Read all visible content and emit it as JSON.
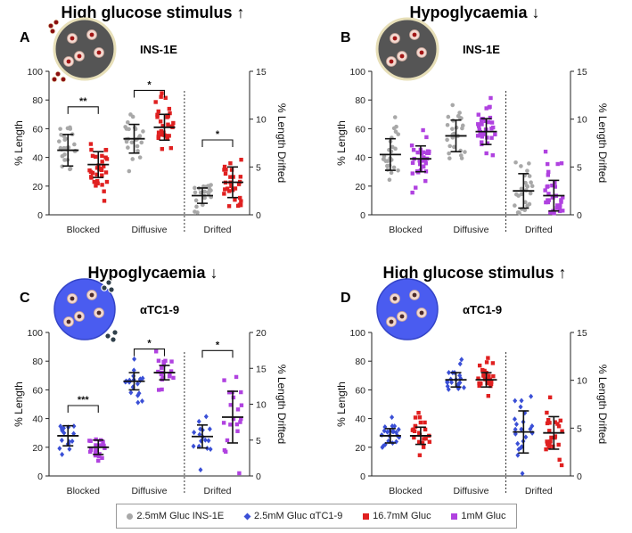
{
  "legend": [
    {
      "key": "ins",
      "label": "2.5mM Gluc INS-1E",
      "color": "#a8a8a8",
      "shape": "circle"
    },
    {
      "key": "atc",
      "label": "2.5mM Gluc αTC1-9",
      "color": "#3a4fd6",
      "shape": "diamond"
    },
    {
      "key": "high",
      "label": "16.7mM Gluc",
      "color": "#e02020",
      "shape": "square"
    },
    {
      "key": "low",
      "label": "1mM Gluc",
      "color": "#b042e0",
      "shape": "square"
    }
  ],
  "chart_data": [
    {
      "panel": "A",
      "type": "scatter",
      "title": "High glucose stimulus ↑",
      "cell_line": "INS-1E",
      "cell_style": "insulin",
      "stimulus_granules": true,
      "ylabel": "% Length",
      "ylabel_right": "% Length Drifted",
      "ylim": [
        0,
        100
      ],
      "y2lim": [
        0,
        15
      ],
      "yticks": [
        0,
        20,
        40,
        60,
        80,
        100
      ],
      "y2ticks": [
        0,
        5,
        10,
        15
      ],
      "categories": [
        "Blocked",
        "Diffusive",
        "Drifted"
      ],
      "series": [
        {
          "name": "2.5mM Gluc INS-1E",
          "color": "#a8a8a8",
          "shape": "circle",
          "mean": [
            45,
            53,
            2.0
          ],
          "sd": [
            11,
            10,
            0.8
          ],
          "n": [
            26,
            24,
            22
          ]
        },
        {
          "name": "16.7mM Gluc",
          "color": "#e02020",
          "shape": "square",
          "mean": [
            35,
            61,
            3.4
          ],
          "sd": [
            9,
            9,
            1.6
          ],
          "n": [
            32,
            30,
            28
          ]
        }
      ],
      "significance": [
        {
          "category": "Blocked",
          "label": "**"
        },
        {
          "category": "Diffusive",
          "label": "*"
        },
        {
          "category": "Drifted",
          "label": "*"
        }
      ]
    },
    {
      "panel": "B",
      "type": "scatter",
      "title": "Hypoglycaemia ↓",
      "cell_line": "INS-1E",
      "cell_style": "insulin",
      "stimulus_granules": false,
      "ylabel": "% Length",
      "ylabel_right": "% Length Drifted",
      "ylim": [
        0,
        100
      ],
      "y2lim": [
        0,
        15
      ],
      "yticks": [
        0,
        20,
        40,
        60,
        80,
        100
      ],
      "y2ticks": [
        0,
        5,
        10,
        15
      ],
      "categories": [
        "Blocked",
        "Diffusive",
        "Drifted"
      ],
      "series": [
        {
          "name": "2.5mM Gluc INS-1E",
          "color": "#a8a8a8",
          "shape": "circle",
          "mean": [
            42,
            55,
            2.5
          ],
          "sd": [
            11,
            11,
            1.8
          ],
          "n": [
            26,
            26,
            26
          ]
        },
        {
          "name": "1mM Gluc",
          "color": "#b042e0",
          "shape": "square",
          "mean": [
            39,
            58,
            2.0
          ],
          "sd": [
            9,
            9,
            1.6
          ],
          "n": [
            34,
            34,
            34
          ]
        }
      ],
      "significance": []
    },
    {
      "panel": "C",
      "type": "scatter",
      "title": "Hypoglycaemia ↓",
      "cell_line": "αTC1-9",
      "cell_style": "glucagon",
      "stimulus_granules": true,
      "ylabel": "% Length",
      "ylabel_right": "% Length Drifted",
      "ylim": [
        0,
        100
      ],
      "y2lim": [
        0,
        20
      ],
      "yticks": [
        0,
        20,
        40,
        60,
        80,
        100
      ],
      "y2ticks": [
        0,
        5,
        10,
        15,
        20
      ],
      "categories": [
        "Blocked",
        "Diffusive",
        "Drifted"
      ],
      "series": [
        {
          "name": "2.5mM Gluc αTC1-9",
          "color": "#3a4fd6",
          "shape": "diamond",
          "mean": [
            28,
            66,
            5.5
          ],
          "sd": [
            7,
            6,
            1.6
          ],
          "n": [
            16,
            20,
            16
          ]
        },
        {
          "name": "1mM Gluc",
          "color": "#b042e0",
          "shape": "square",
          "mean": [
            20,
            72,
            8.2
          ],
          "sd": [
            5,
            5,
            3.6
          ],
          "n": [
            18,
            20,
            20
          ]
        }
      ],
      "significance": [
        {
          "category": "Blocked",
          "label": "***"
        },
        {
          "category": "Diffusive",
          "label": "*"
        },
        {
          "category": "Drifted",
          "label": "*"
        }
      ]
    },
    {
      "panel": "D",
      "type": "scatter",
      "title": "High glucose stimulus ↑",
      "cell_line": "αTC1-9",
      "cell_style": "glucagon",
      "stimulus_granules": false,
      "ylabel": "% Length",
      "ylabel_right": "% Length Drifted",
      "ylim": [
        0,
        100
      ],
      "y2lim": [
        0,
        15
      ],
      "yticks": [
        0,
        20,
        40,
        60,
        80,
        100
      ],
      "y2ticks": [
        0,
        5,
        10,
        15
      ],
      "categories": [
        "Blocked",
        "Diffusive",
        "Drifted"
      ],
      "series": [
        {
          "name": "2.5mM Gluc αTC1-9",
          "color": "#3a4fd6",
          "shape": "diamond",
          "mean": [
            28,
            67,
            4.6
          ],
          "sd": [
            5,
            5,
            2.2
          ],
          "n": [
            22,
            20,
            22
          ]
        },
        {
          "name": "16.7mM Gluc",
          "color": "#e02020",
          "shape": "square",
          "mean": [
            28,
            67,
            4.5
          ],
          "sd": [
            6,
            5,
            1.7
          ],
          "n": [
            24,
            26,
            24
          ]
        }
      ],
      "significance": []
    }
  ]
}
